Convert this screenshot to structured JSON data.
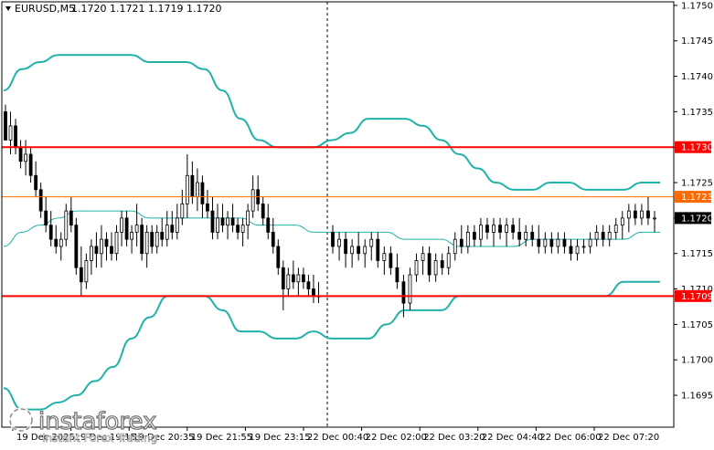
{
  "header": {
    "symbol_label": "EURUSD,M5",
    "ohlc_label": "1.1720 1.1721 1.1719 1.1720"
  },
  "branding": {
    "logo_name": "instaforex",
    "tagline": "Instant Forex Trading"
  },
  "colors": {
    "background": "#ffffff",
    "candle": "#000000",
    "bollinger": "#20b2aa",
    "level_line": "#ff0000",
    "current_line": "#ff6a00",
    "current_label_bg": "#000000",
    "level_label_bg": "#ff0000"
  },
  "chart_data": {
    "type": "candlestick",
    "symbol": "EURUSD",
    "timeframe": "M5",
    "ylim": [
      1.16905,
      1.17505
    ],
    "y_ticks": [
      "1.1750",
      "1.1745",
      "1.1740",
      "1.1735",
      "1.1730",
      "1.1725",
      "1.1720",
      "1.1715",
      "1.1710",
      "1.1705",
      "1.1700",
      "1.1695"
    ],
    "x_ticks": [
      "19 Dec 2025",
      "19 Dec 19:15",
      "19 Dec 20:35",
      "19 Dec 21:55",
      "19 Dec 23:15",
      "22 Dec 00:40",
      "22 Dec 02:00",
      "22 Dec 03:20",
      "22 Dec 04:40",
      "22 Dec 06:00",
      "22 Dec 07:20"
    ],
    "price_labels": [
      {
        "text": "1.1730",
        "value": 1.173,
        "style": "level"
      },
      {
        "text": "1.1723",
        "value": 1.1723,
        "style": "current"
      },
      {
        "text": "1.1720",
        "value": 1.172,
        "style": "last"
      },
      {
        "text": "1.1709",
        "value": 1.1709,
        "style": "level"
      }
    ],
    "horizontal_levels": [
      1.173,
      1.1709
    ],
    "current_level": 1.1723,
    "session_divider_label": "19 Dec 23:15",
    "candles": [
      [
        1.1735,
        1.1736,
        1.1731,
        1.1731
      ],
      [
        1.1731,
        1.1735,
        1.1729,
        1.1733
      ],
      [
        1.1733,
        1.1734,
        1.1729,
        1.173
      ],
      [
        1.173,
        1.1731,
        1.1727,
        1.1728
      ],
      [
        1.1728,
        1.1731,
        1.1726,
        1.1729
      ],
      [
        1.1729,
        1.173,
        1.1725,
        1.1726
      ],
      [
        1.1726,
        1.1728,
        1.1723,
        1.1724
      ],
      [
        1.1724,
        1.1725,
        1.172,
        1.1721
      ],
      [
        1.1721,
        1.1723,
        1.1718,
        1.1719
      ],
      [
        1.1719,
        1.1721,
        1.1716,
        1.1717
      ],
      [
        1.1717,
        1.1719,
        1.1715,
        1.1716
      ],
      [
        1.1716,
        1.1718,
        1.1714,
        1.1717
      ],
      [
        1.1717,
        1.1722,
        1.1716,
        1.1721
      ],
      [
        1.1721,
        1.1723,
        1.1718,
        1.1719
      ],
      [
        1.1719,
        1.172,
        1.1712,
        1.1713
      ],
      [
        1.1713,
        1.1716,
        1.1709,
        1.1711
      ],
      [
        1.1711,
        1.1715,
        1.171,
        1.1714
      ],
      [
        1.1714,
        1.1717,
        1.1712,
        1.1716
      ],
      [
        1.1716,
        1.1718,
        1.1713,
        1.1715
      ],
      [
        1.1715,
        1.1719,
        1.1713,
        1.1717
      ],
      [
        1.1717,
        1.1718,
        1.1714,
        1.1716
      ],
      [
        1.1716,
        1.1718,
        1.1714,
        1.1715
      ],
      [
        1.1715,
        1.1719,
        1.1714,
        1.1718
      ],
      [
        1.1718,
        1.1721,
        1.1716,
        1.172
      ],
      [
        1.172,
        1.1721,
        1.1716,
        1.1717
      ],
      [
        1.1717,
        1.1719,
        1.1715,
        1.1718
      ],
      [
        1.1718,
        1.1722,
        1.1716,
        1.1719
      ],
      [
        1.1719,
        1.172,
        1.1714,
        1.1715
      ],
      [
        1.1715,
        1.1719,
        1.1713,
        1.1718
      ],
      [
        1.1718,
        1.1719,
        1.1715,
        1.1716
      ],
      [
        1.1716,
        1.1719,
        1.1715,
        1.1718
      ],
      [
        1.1718,
        1.172,
        1.1716,
        1.1717
      ],
      [
        1.1717,
        1.1721,
        1.1716,
        1.1719
      ],
      [
        1.1719,
        1.1721,
        1.1717,
        1.1718
      ],
      [
        1.1718,
        1.1722,
        1.1717,
        1.172
      ],
      [
        1.172,
        1.1724,
        1.1719,
        1.1722
      ],
      [
        1.1722,
        1.1729,
        1.172,
        1.1726
      ],
      [
        1.1726,
        1.1728,
        1.1722,
        1.1723
      ],
      [
        1.1723,
        1.1727,
        1.1721,
        1.1725
      ],
      [
        1.1725,
        1.1726,
        1.172,
        1.1722
      ],
      [
        1.1722,
        1.1724,
        1.172,
        1.1721
      ],
      [
        1.1721,
        1.1723,
        1.1717,
        1.1718
      ],
      [
        1.1718,
        1.1722,
        1.1717,
        1.172
      ],
      [
        1.172,
        1.1722,
        1.1718,
        1.1719
      ],
      [
        1.1719,
        1.1721,
        1.1717,
        1.172
      ],
      [
        1.172,
        1.1722,
        1.1718,
        1.1719
      ],
      [
        1.1719,
        1.172,
        1.1717,
        1.1718
      ],
      [
        1.1718,
        1.172,
        1.1716,
        1.1719
      ],
      [
        1.1719,
        1.1722,
        1.1717,
        1.1721
      ],
      [
        1.1721,
        1.1726,
        1.172,
        1.1724
      ],
      [
        1.1724,
        1.1726,
        1.1721,
        1.1722
      ],
      [
        1.1722,
        1.1723,
        1.1719,
        1.172
      ],
      [
        1.172,
        1.1722,
        1.1717,
        1.1718
      ],
      [
        1.1718,
        1.172,
        1.1715,
        1.1716
      ],
      [
        1.1716,
        1.1717,
        1.1712,
        1.1713
      ],
      [
        1.1713,
        1.1714,
        1.1707,
        1.171
      ],
      [
        1.171,
        1.1713,
        1.1709,
        1.1712
      ],
      [
        1.1712,
        1.1714,
        1.171,
        1.1711
      ],
      [
        1.1711,
        1.1713,
        1.1709,
        1.1712
      ],
      [
        1.1712,
        1.1713,
        1.171,
        1.1711
      ],
      [
        1.1711,
        1.1712,
        1.1709,
        1.171
      ],
      [
        1.171,
        1.1712,
        1.1708,
        1.1709
      ],
      [
        1.1709,
        1.1711,
        1.1708,
        1.1709
      ],
      [
        1.1718,
        1.1719,
        1.1715,
        1.1716
      ],
      [
        1.1716,
        1.1718,
        1.1714,
        1.1717
      ],
      [
        1.1717,
        1.1718,
        1.1713,
        1.1715
      ],
      [
        1.1715,
        1.1717,
        1.1713,
        1.1716
      ],
      [
        1.1716,
        1.1718,
        1.1714,
        1.1715
      ],
      [
        1.1715,
        1.1717,
        1.1713,
        1.1716
      ],
      [
        1.1716,
        1.1718,
        1.1714,
        1.1717
      ],
      [
        1.1717,
        1.1718,
        1.1713,
        1.1714
      ],
      [
        1.1714,
        1.1716,
        1.1712,
        1.1715
      ],
      [
        1.1715,
        1.1716,
        1.1712,
        1.1713
      ],
      [
        1.1713,
        1.1715,
        1.171,
        1.1711
      ],
      [
        1.1711,
        1.1712,
        1.1706,
        1.1708
      ],
      [
        1.1708,
        1.1713,
        1.1707,
        1.1712
      ],
      [
        1.1712,
        1.1715,
        1.1711,
        1.1714
      ],
      [
        1.1714,
        1.1716,
        1.1712,
        1.1715
      ],
      [
        1.1715,
        1.1716,
        1.1711,
        1.1712
      ],
      [
        1.1712,
        1.1715,
        1.1711,
        1.1714
      ],
      [
        1.1714,
        1.1715,
        1.1712,
        1.1713
      ],
      [
        1.1713,
        1.1716,
        1.1712,
        1.1715
      ],
      [
        1.1715,
        1.1718,
        1.1714,
        1.1717
      ],
      [
        1.1717,
        1.1719,
        1.1715,
        1.1716
      ],
      [
        1.1716,
        1.1719,
        1.1715,
        1.1718
      ],
      [
        1.1718,
        1.1719,
        1.1716,
        1.1717
      ],
      [
        1.1717,
        1.172,
        1.1716,
        1.1719
      ],
      [
        1.1719,
        1.172,
        1.1717,
        1.1718
      ],
      [
        1.1718,
        1.172,
        1.1716,
        1.1719
      ],
      [
        1.1719,
        1.172,
        1.1717,
        1.1718
      ],
      [
        1.1718,
        1.172,
        1.1716,
        1.1719
      ],
      [
        1.1719,
        1.172,
        1.1717,
        1.1718
      ],
      [
        1.1718,
        1.172,
        1.1716,
        1.1717
      ],
      [
        1.1717,
        1.1719,
        1.1716,
        1.1718
      ],
      [
        1.1718,
        1.1719,
        1.1716,
        1.1717
      ],
      [
        1.1717,
        1.1719,
        1.1715,
        1.1716
      ],
      [
        1.1716,
        1.1718,
        1.1715,
        1.1717
      ],
      [
        1.1717,
        1.1718,
        1.1715,
        1.1716
      ],
      [
        1.1716,
        1.1718,
        1.1715,
        1.1717
      ],
      [
        1.1717,
        1.1718,
        1.1715,
        1.1716
      ],
      [
        1.1716,
        1.1717,
        1.1714,
        1.1715
      ],
      [
        1.1715,
        1.1717,
        1.1714,
        1.1716
      ],
      [
        1.1716,
        1.1717,
        1.1715,
        1.1716
      ],
      [
        1.1716,
        1.1718,
        1.1715,
        1.1717
      ],
      [
        1.1717,
        1.1719,
        1.1716,
        1.1718
      ],
      [
        1.1718,
        1.1719,
        1.1716,
        1.1717
      ],
      [
        1.1717,
        1.1719,
        1.1716,
        1.1718
      ],
      [
        1.1718,
        1.172,
        1.1717,
        1.1719
      ],
      [
        1.1719,
        1.1721,
        1.1717,
        1.172
      ],
      [
        1.172,
        1.1722,
        1.1718,
        1.1721
      ],
      [
        1.1721,
        1.1722,
        1.1719,
        1.172
      ],
      [
        1.172,
        1.1722,
        1.1719,
        1.1721
      ],
      [
        1.1721,
        1.1723,
        1.1719,
        1.172
      ],
      [
        1.172,
        1.1721,
        1.1718,
        1.172
      ]
    ],
    "bollinger": {
      "upper": [
        1.1738,
        1.1741,
        1.1742,
        1.1743,
        1.1743,
        1.1743,
        1.1743,
        1.1743,
        1.1742,
        1.1742,
        1.1742,
        1.1741,
        1.1738,
        1.1734,
        1.1731,
        1.173,
        1.173,
        1.173,
        1.1731,
        1.1732,
        1.1734,
        1.1734,
        1.1734,
        1.1733,
        1.1731,
        1.1729,
        1.1727,
        1.1725,
        1.1724,
        1.1724,
        1.1725,
        1.1725,
        1.1724,
        1.1724,
        1.1724,
        1.1725,
        1.1725
      ],
      "middle": [
        1.1716,
        1.1718,
        1.1719,
        1.172,
        1.1721,
        1.1721,
        1.1721,
        1.1721,
        1.172,
        1.172,
        1.172,
        1.172,
        1.172,
        1.172,
        1.1719,
        1.1719,
        1.1719,
        1.1718,
        1.1718,
        1.1718,
        1.1718,
        1.1718,
        1.1717,
        1.1717,
        1.1717,
        1.1716,
        1.1716,
        1.1716,
        1.1716,
        1.1717,
        1.1717,
        1.1717,
        1.1717,
        1.1717,
        1.1717,
        1.1718,
        1.1718
      ],
      "lower": [
        1.1696,
        1.1693,
        1.1693,
        1.1694,
        1.1695,
        1.1697,
        1.1699,
        1.1703,
        1.1706,
        1.1709,
        1.1709,
        1.1709,
        1.1707,
        1.1704,
        1.1704,
        1.1703,
        1.1703,
        1.1704,
        1.1703,
        1.1703,
        1.1703,
        1.1705,
        1.1707,
        1.1707,
        1.1707,
        1.1709,
        1.1709,
        1.1709,
        1.1709,
        1.1709,
        1.1709,
        1.1709,
        1.1709,
        1.1709,
        1.1711,
        1.1711,
        1.1711
      ]
    }
  }
}
